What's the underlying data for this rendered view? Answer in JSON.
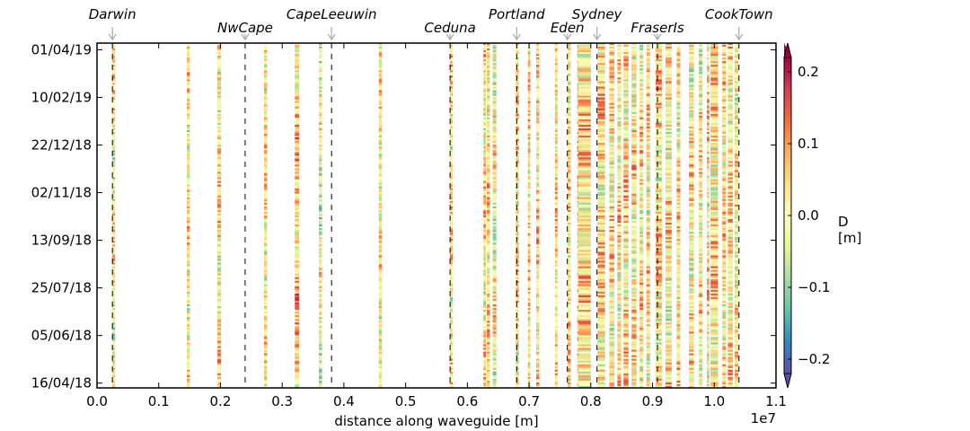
{
  "chart_data": {
    "type": "heatmap",
    "title": "",
    "xlabel": "distance along waveguide [m]",
    "x_offset_text": "1e7",
    "x_ticks": [
      "0.0",
      "0.1",
      "0.2",
      "0.3",
      "0.4",
      "0.5",
      "0.6",
      "0.7",
      "0.8",
      "0.9",
      "1.0",
      "1.1"
    ],
    "x_tick_values": [
      0.0,
      0.1,
      0.2,
      0.3,
      0.4,
      0.5,
      0.6,
      0.7,
      0.8,
      0.9,
      1.0,
      1.1
    ],
    "xlim": [
      0.0,
      1.1
    ],
    "x_scale": 10000000,
    "y_ticks": [
      "01/04/19",
      "10/02/19",
      "22/12/18",
      "02/11/18",
      "13/09/18",
      "25/07/18",
      "05/06/18",
      "16/04/18"
    ],
    "y_tick_dates": [
      "2019-04-01",
      "2019-02-10",
      "2018-12-22",
      "2018-11-02",
      "2018-09-13",
      "2018-07-25",
      "2018-06-05",
      "2018-04-16"
    ],
    "ylim_dates": [
      "2018-04-11",
      "2019-04-08"
    ],
    "colorbar": {
      "label_line1": "D",
      "label_line2": "[m]",
      "ticks": [
        "0.2",
        "0.1",
        "0.0",
        "−0.1",
        "−0.2"
      ],
      "tick_values": [
        0.2,
        0.1,
        0.0,
        -0.1,
        -0.2
      ],
      "range": [
        -0.22,
        0.22
      ],
      "colormap": "Spectral_r"
    },
    "stations": [
      {
        "name": "Darwin",
        "x": 0.025,
        "row": "upper"
      },
      {
        "name": "NwCape",
        "x": 0.24,
        "row": "lower"
      },
      {
        "name": "CapeLeeuwin",
        "x": 0.38,
        "row": "upper"
      },
      {
        "name": "Ceduna",
        "x": 0.572,
        "row": "lower"
      },
      {
        "name": "Portland",
        "x": 0.68,
        "row": "upper"
      },
      {
        "name": "Eden",
        "x": 0.762,
        "row": "lower"
      },
      {
        "name": "Sydney",
        "x": 0.81,
        "row": "upper"
      },
      {
        "name": "FraserIs",
        "x": 0.908,
        "row": "lower"
      },
      {
        "name": "CookTown",
        "x": 1.04,
        "row": "upper"
      }
    ],
    "columns": [
      {
        "x": 0.027,
        "w": 0.005,
        "mean": 0.0
      },
      {
        "x": 0.148,
        "w": 0.005,
        "mean": 0.01
      },
      {
        "x": 0.198,
        "w": 0.006,
        "mean": 0.02
      },
      {
        "x": 0.273,
        "w": 0.005,
        "mean": 0.02
      },
      {
        "x": 0.324,
        "w": 0.007,
        "mean": 0.05
      },
      {
        "x": 0.362,
        "w": 0.005,
        "mean": -0.02
      },
      {
        "x": 0.459,
        "w": 0.005,
        "mean": 0.01
      },
      {
        "x": 0.574,
        "w": 0.005,
        "mean": 0.02
      },
      {
        "x": 0.628,
        "w": 0.004,
        "mean": 0.02
      },
      {
        "x": 0.634,
        "w": 0.005,
        "mean": 0.03
      },
      {
        "x": 0.644,
        "w": 0.006,
        "mean": 0.0
      },
      {
        "x": 0.681,
        "w": 0.005,
        "mean": 0.02
      },
      {
        "x": 0.7,
        "w": 0.004,
        "mean": 0.02
      },
      {
        "x": 0.714,
        "w": 0.005,
        "mean": 0.02
      },
      {
        "x": 0.744,
        "w": 0.004,
        "mean": 0.02
      },
      {
        "x": 0.765,
        "w": 0.005,
        "mean": 0.02
      },
      {
        "x": 0.78,
        "w": 0.004,
        "mean": 0.02
      },
      {
        "x": 0.79,
        "w": 0.02,
        "mean": 0.03
      },
      {
        "x": 0.817,
        "w": 0.012,
        "mean": 0.03
      },
      {
        "x": 0.834,
        "w": 0.008,
        "mean": 0.02
      },
      {
        "x": 0.846,
        "w": 0.006,
        "mean": 0.02
      },
      {
        "x": 0.857,
        "w": 0.008,
        "mean": 0.03
      },
      {
        "x": 0.87,
        "w": 0.008,
        "mean": 0.02
      },
      {
        "x": 0.882,
        "w": 0.006,
        "mean": 0.02
      },
      {
        "x": 0.893,
        "w": 0.006,
        "mean": 0.02
      },
      {
        "x": 0.91,
        "w": 0.01,
        "mean": 0.02
      },
      {
        "x": 0.926,
        "w": 0.01,
        "mean": 0.01
      },
      {
        "x": 0.942,
        "w": 0.006,
        "mean": 0.02
      },
      {
        "x": 0.963,
        "w": 0.008,
        "mean": 0.01
      },
      {
        "x": 0.978,
        "w": 0.006,
        "mean": 0.01
      },
      {
        "x": 0.99,
        "w": 0.004,
        "mean": 0.02
      },
      {
        "x": 1.0,
        "w": 0.012,
        "mean": 0.03
      },
      {
        "x": 1.016,
        "w": 0.006,
        "mean": 0.02
      },
      {
        "x": 1.026,
        "w": 0.008,
        "mean": 0.02
      },
      {
        "x": 1.036,
        "w": 0.006,
        "mean": 0.02
      }
    ]
  }
}
